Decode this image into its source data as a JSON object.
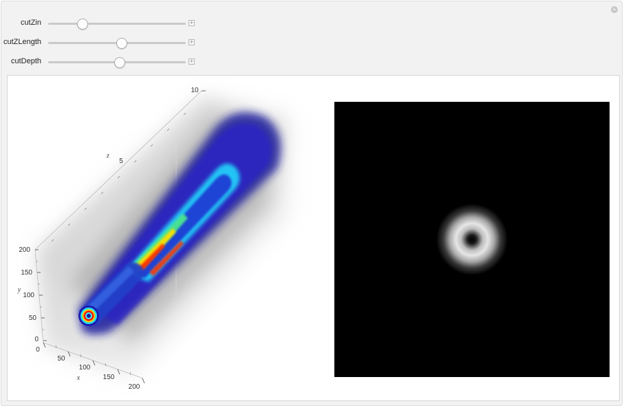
{
  "controls": [
    {
      "label": "cutZin",
      "value": 0.25
    },
    {
      "label": "cutZLength",
      "value": 0.535
    },
    {
      "label": "cutDepth",
      "value": 0.52
    }
  ],
  "plot3d": {
    "axis_labels": {
      "x": "x",
      "y": "y",
      "z": "z"
    },
    "x_ticks": [
      "0",
      "50",
      "100",
      "150",
      "200"
    ],
    "y_ticks": [
      "0",
      "50",
      "100",
      "150",
      "200"
    ],
    "z_ticks": [
      "5",
      "10"
    ]
  },
  "icons": {
    "corner": "plus-circle-icon",
    "expander": "plus-box-icon"
  }
}
